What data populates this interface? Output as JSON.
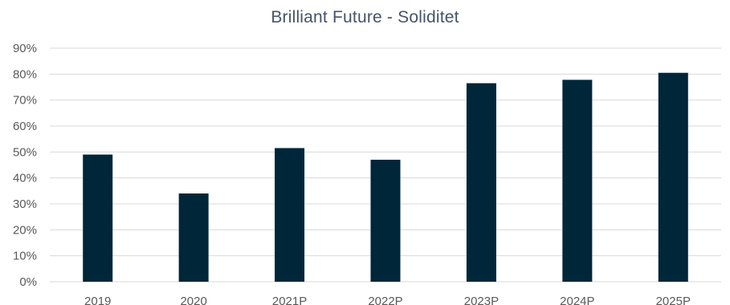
{
  "chart_data": {
    "type": "bar",
    "title": "Brilliant Future - Soliditet",
    "xlabel": "",
    "ylabel": "",
    "categories": [
      "2019",
      "2020",
      "2021P",
      "2022P",
      "2023P",
      "2024P",
      "2025P"
    ],
    "series": [
      {
        "values": [
          49,
          34,
          51.5,
          47,
          76.5,
          77.8,
          80.5
        ]
      }
    ],
    "ylim": [
      0,
      90
    ],
    "yticks": [
      "0%",
      "10%",
      "20%",
      "30%",
      "40%",
      "50%",
      "60%",
      "70%",
      "80%",
      "90%"
    ],
    "grid": true,
    "legend": "none",
    "colors": {
      "bar": "#00263a",
      "grid": "#d9d9d9",
      "axis_text": "#595959",
      "title": "#44546a"
    }
  }
}
